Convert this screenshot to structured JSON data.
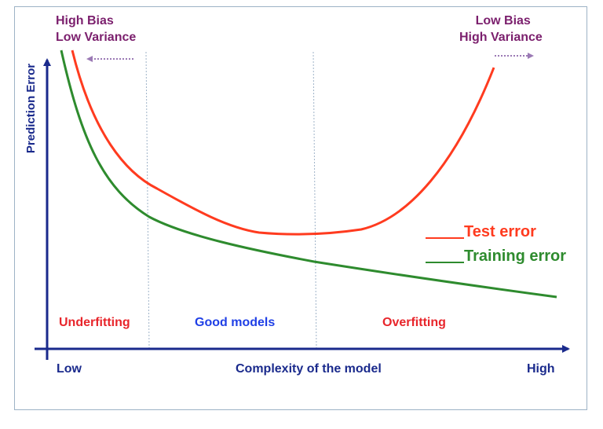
{
  "chart_data": {
    "type": "line",
    "xlabel": "Complexity of the model",
    "ylabel": "Prediction Error",
    "x_ticks": {
      "low": "Low",
      "high": "High"
    },
    "series": [
      {
        "name": "Test error",
        "color": "#ff3b1f"
      },
      {
        "name": "Training error",
        "color": "#2e8b2e"
      }
    ],
    "legend_marker": "____",
    "regions": [
      {
        "label": "Underfitting",
        "color": "#e8252b"
      },
      {
        "label": "Good models",
        "color": "#1f3fe6"
      },
      {
        "label": "Overfitting",
        "color": "#e8252b"
      }
    ],
    "corner_notes": {
      "left": {
        "line1": "High Bias",
        "line2": "Low Variance"
      },
      "right": {
        "line1": "Low Bias",
        "line2": "High Variance"
      }
    },
    "axis_color": "#1a2a8c",
    "note_color": "#7b1f6d"
  }
}
